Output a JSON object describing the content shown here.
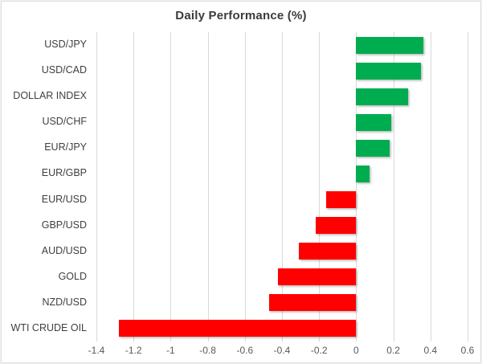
{
  "chart_data": {
    "type": "bar",
    "orientation": "horizontal",
    "title": "Daily Performance (%)",
    "categories": [
      "USD/JPY",
      "USD/CAD",
      "DOLLAR INDEX",
      "USD/CHF",
      "EUR/JPY",
      "EUR/GBP",
      "EUR/USD",
      "GBP/USD",
      "AUD/USD",
      "GOLD",
      "NZD/USD",
      "WTI CRUDE OIL"
    ],
    "values": [
      0.36,
      0.35,
      0.28,
      0.19,
      0.18,
      0.07,
      -0.16,
      -0.22,
      -0.31,
      -0.42,
      -0.47,
      -1.28
    ],
    "xlim": [
      -1.4,
      0.6
    ],
    "xticks": [
      -1.4,
      -1.2,
      -1,
      -0.8,
      -0.6,
      -0.4,
      -0.2,
      0,
      0.2,
      0.4,
      0.6
    ],
    "xtick_labels": [
      "-1.4",
      "-1.2",
      "-1",
      "-0.8",
      "-0.6",
      "-0.4",
      "-0.2",
      "0",
      "0.2",
      "0.4",
      "0.6"
    ],
    "grid": "vertical-on",
    "legend": "none",
    "colors": {
      "positive_bar": "#00AC50",
      "negative_bar": "#FF0000",
      "gridline": "#D9D9D9",
      "title_text": "#3B3B3B",
      "category_text": "#3F3F3F",
      "tick_text": "#595959",
      "frame_border": "#DCDCDC",
      "background": "#FFFFFF"
    }
  }
}
